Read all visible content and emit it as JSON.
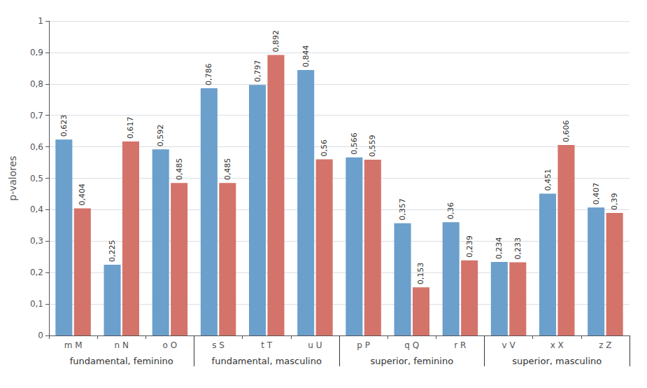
{
  "chart_data": {
    "type": "bar",
    "ylabel": "p-valores",
    "categories": [
      "m M",
      "n N",
      "o O",
      "s S",
      "t T",
      "u U",
      "p P",
      "q Q",
      "r R",
      "v V",
      "x X",
      "z Z"
    ],
    "groups": [
      {
        "label": "fundamental, feminino",
        "categories": [
          "m M",
          "n N",
          "o O"
        ]
      },
      {
        "label": "fundamental, masculino",
        "categories": [
          "s S",
          "t T",
          "u U"
        ]
      },
      {
        "label": "superior, feminino",
        "categories": [
          "p P",
          "q Q",
          "r R"
        ]
      },
      {
        "label": "superior, masculino",
        "categories": [
          "v V",
          "x X",
          "z Z"
        ]
      }
    ],
    "series": [
      {
        "color": "#6b9fcc",
        "values": [
          0.623,
          0.225,
          0.592,
          0.786,
          0.797,
          0.844,
          0.566,
          0.357,
          0.36,
          0.234,
          0.451,
          0.407
        ],
        "value_labels": [
          "0,623",
          "0,225",
          "0,592",
          "0,786",
          "0,797",
          "0,844",
          "0,566",
          "0,357",
          "0,36",
          "0,234",
          "0,451",
          "0,407"
        ]
      },
      {
        "color": "#d4736a",
        "values": [
          0.404,
          0.617,
          0.485,
          0.485,
          0.892,
          0.56,
          0.559,
          0.153,
          0.239,
          0.233,
          0.606,
          0.39
        ],
        "value_labels": [
          "0,404",
          "0,617",
          "0,485",
          "0,485",
          "0,892",
          "0,56",
          "0,559",
          "0,153",
          "0,239",
          "0,233",
          "0,606",
          "0,39"
        ]
      }
    ],
    "ylim": [
      0,
      1.0
    ],
    "yticks": [
      0,
      {
        "value": 0.1,
        "label": "0,1"
      },
      {
        "value": 0.2,
        "label": "0,2"
      },
      {
        "value": 0.3,
        "label": "0,3"
      },
      {
        "value": 0.4,
        "label": "0,4"
      },
      {
        "value": 0.5,
        "label": "0,5"
      },
      {
        "value": 0.6,
        "label": "0,6"
      },
      {
        "value": 0.7,
        "label": "0,7"
      },
      {
        "value": 0.8,
        "label": "0,8"
      },
      {
        "value": 0.9,
        "label": "0,9"
      },
      1
    ],
    "grid": true,
    "data_labels": true
  }
}
